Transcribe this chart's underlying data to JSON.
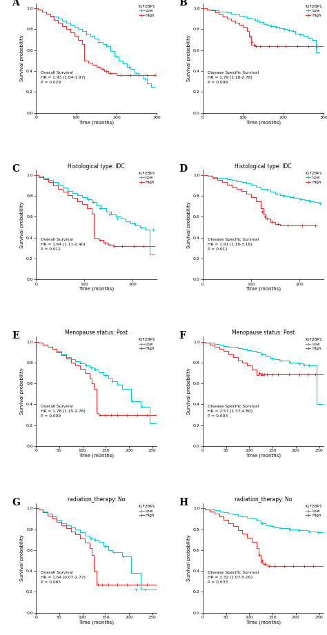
{
  "figure_size": [
    4.74,
    9.21
  ],
  "dpi": 100,
  "panels": [
    {
      "label": "A",
      "title": "",
      "annotation": "Overall Survival\nHR = 1.43 (1.04-1.97)\nP = 0.029",
      "xlim": [
        0,
        300
      ],
      "ylim": [
        0.0,
        1.05
      ],
      "xticks": [
        0,
        100,
        200,
        300
      ],
      "yticks": [
        0.0,
        0.2,
        0.4,
        0.6,
        0.8,
        1.0
      ],
      "low_x": [
        0,
        5,
        15,
        25,
        35,
        45,
        55,
        65,
        75,
        85,
        95,
        105,
        115,
        125,
        135,
        145,
        155,
        165,
        175,
        185,
        195,
        205,
        215,
        225,
        235,
        245,
        255,
        265,
        275,
        285,
        295
      ],
      "low_y": [
        1.0,
        0.99,
        0.97,
        0.95,
        0.93,
        0.92,
        0.9,
        0.88,
        0.86,
        0.84,
        0.82,
        0.8,
        0.78,
        0.76,
        0.74,
        0.71,
        0.68,
        0.66,
        0.64,
        0.59,
        0.54,
        0.5,
        0.47,
        0.44,
        0.42,
        0.38,
        0.36,
        0.33,
        0.28,
        0.25,
        0.25
      ],
      "high_x": [
        0,
        5,
        15,
        25,
        35,
        45,
        55,
        65,
        75,
        85,
        95,
        105,
        115,
        120,
        130,
        140,
        150,
        160,
        170,
        180,
        200,
        220,
        240,
        260,
        280,
        300
      ],
      "high_y": [
        1.0,
        0.99,
        0.97,
        0.95,
        0.92,
        0.89,
        0.86,
        0.83,
        0.8,
        0.77,
        0.74,
        0.7,
        0.66,
        0.5,
        0.48,
        0.46,
        0.44,
        0.42,
        0.4,
        0.38,
        0.36,
        0.36,
        0.36,
        0.36,
        0.36,
        0.36
      ],
      "low_censor_x": [
        125,
        155,
        178,
        200,
        230,
        250,
        270
      ],
      "low_censor_y": [
        0.76,
        0.68,
        0.64,
        0.54,
        0.44,
        0.38,
        0.33
      ],
      "high_censor_x": [
        155,
        165,
        175,
        185,
        210,
        235,
        255,
        275,
        295
      ],
      "high_censor_y": [
        0.44,
        0.42,
        0.4,
        0.38,
        0.36,
        0.36,
        0.36,
        0.36,
        0.36
      ]
    },
    {
      "label": "B",
      "title": "",
      "annotation": "Disease Specific Survival\nHR = 1.79 (1.18-2.78)\nP = 0.009",
      "xlim": [
        0,
        300
      ],
      "ylim": [
        0.0,
        1.05
      ],
      "xticks": [
        0,
        100,
        200,
        300
      ],
      "yticks": [
        0.0,
        0.2,
        0.4,
        0.6,
        0.8,
        1.0
      ],
      "low_x": [
        0,
        10,
        20,
        30,
        40,
        50,
        60,
        70,
        80,
        90,
        100,
        110,
        120,
        130,
        140,
        150,
        160,
        170,
        180,
        190,
        200,
        210,
        220,
        230,
        240,
        250,
        260,
        270,
        280,
        290
      ],
      "low_y": [
        1.0,
        0.99,
        0.99,
        0.98,
        0.97,
        0.97,
        0.96,
        0.95,
        0.94,
        0.93,
        0.92,
        0.91,
        0.9,
        0.88,
        0.87,
        0.85,
        0.84,
        0.83,
        0.82,
        0.81,
        0.8,
        0.79,
        0.78,
        0.76,
        0.75,
        0.74,
        0.72,
        0.7,
        0.58,
        0.58
      ],
      "high_x": [
        0,
        10,
        20,
        30,
        40,
        50,
        60,
        70,
        80,
        90,
        100,
        110,
        115,
        120,
        130,
        140,
        160,
        180,
        200,
        220,
        240,
        260,
        280,
        300
      ],
      "high_y": [
        1.0,
        0.99,
        0.98,
        0.96,
        0.94,
        0.92,
        0.9,
        0.88,
        0.86,
        0.84,
        0.82,
        0.78,
        0.73,
        0.65,
        0.64,
        0.64,
        0.64,
        0.64,
        0.64,
        0.64,
        0.64,
        0.64,
        0.64,
        0.64
      ],
      "low_censor_x": [
        135,
        155,
        170,
        182,
        202,
        214,
        225,
        242
      ],
      "low_censor_y": [
        0.88,
        0.85,
        0.83,
        0.82,
        0.8,
        0.79,
        0.78,
        0.75
      ],
      "high_censor_x": [
        118,
        122,
        127,
        132,
        142,
        165,
        185,
        205,
        235,
        262,
        282
      ],
      "high_censor_y": [
        0.73,
        0.68,
        0.65,
        0.64,
        0.64,
        0.64,
        0.64,
        0.64,
        0.64,
        0.64,
        0.64
      ]
    },
    {
      "label": "C",
      "title": "Histological type: IDC",
      "annotation": "Overall Survival\nHR = 1.64 (1.11-2.40)\nP = 0.012",
      "xlim": [
        0,
        250
      ],
      "ylim": [
        0.0,
        1.05
      ],
      "xticks": [
        0,
        100,
        200
      ],
      "yticks": [
        0.0,
        0.2,
        0.4,
        0.6,
        0.8,
        1.0
      ],
      "low_x": [
        0,
        5,
        15,
        25,
        35,
        45,
        55,
        65,
        75,
        85,
        95,
        105,
        115,
        125,
        135,
        145,
        155,
        165,
        175,
        185,
        195,
        205,
        215,
        225,
        235,
        245
      ],
      "low_y": [
        1.0,
        0.99,
        0.97,
        0.95,
        0.93,
        0.91,
        0.88,
        0.85,
        0.83,
        0.81,
        0.79,
        0.77,
        0.74,
        0.71,
        0.68,
        0.65,
        0.62,
        0.6,
        0.58,
        0.56,
        0.54,
        0.52,
        0.5,
        0.48,
        0.24,
        0.24
      ],
      "high_x": [
        0,
        5,
        15,
        25,
        35,
        45,
        55,
        65,
        75,
        85,
        95,
        105,
        115,
        120,
        130,
        140,
        150,
        160,
        175,
        195,
        215,
        235,
        245
      ],
      "high_y": [
        1.0,
        0.98,
        0.96,
        0.93,
        0.9,
        0.87,
        0.84,
        0.81,
        0.78,
        0.75,
        0.72,
        0.68,
        0.63,
        0.4,
        0.38,
        0.35,
        0.33,
        0.32,
        0.32,
        0.32,
        0.32,
        0.32,
        0.32
      ],
      "low_censor_x": [
        108,
        118,
        132,
        152,
        168,
        202,
        218,
        242
      ],
      "low_censor_y": [
        0.77,
        0.74,
        0.68,
        0.62,
        0.58,
        0.54,
        0.5,
        0.48
      ],
      "high_censor_x": [
        132,
        142,
        152,
        162,
        178,
        202,
        222
      ],
      "high_censor_y": [
        0.38,
        0.35,
        0.33,
        0.32,
        0.32,
        0.32,
        0.32
      ]
    },
    {
      "label": "D",
      "title": "Histological type: IDC",
      "annotation": "Disease Specific Survival\nHR = 1.91 (1.16-3.16)\nP = 0.011",
      "xlim": [
        0,
        250
      ],
      "ylim": [
        0.0,
        1.05
      ],
      "xticks": [
        0,
        100,
        200
      ],
      "yticks": [
        0.0,
        0.2,
        0.4,
        0.6,
        0.8,
        1.0
      ],
      "low_x": [
        0,
        10,
        20,
        30,
        40,
        50,
        60,
        70,
        80,
        90,
        100,
        110,
        120,
        130,
        140,
        150,
        160,
        170,
        180,
        190,
        200,
        210,
        220,
        230,
        240
      ],
      "low_y": [
        1.0,
        0.99,
        0.98,
        0.97,
        0.97,
        0.96,
        0.95,
        0.94,
        0.93,
        0.92,
        0.91,
        0.89,
        0.87,
        0.86,
        0.84,
        0.82,
        0.81,
        0.8,
        0.79,
        0.78,
        0.77,
        0.76,
        0.75,
        0.74,
        0.73
      ],
      "high_x": [
        0,
        10,
        20,
        30,
        40,
        50,
        60,
        70,
        80,
        90,
        100,
        110,
        120,
        125,
        130,
        140,
        150,
        160,
        175,
        195,
        215,
        235
      ],
      "high_y": [
        1.0,
        0.99,
        0.97,
        0.95,
        0.93,
        0.91,
        0.89,
        0.87,
        0.85,
        0.82,
        0.79,
        0.75,
        0.68,
        0.62,
        0.58,
        0.55,
        0.53,
        0.52,
        0.52,
        0.52,
        0.52,
        0.52
      ],
      "low_censor_x": [
        132,
        152,
        167,
        187,
        202,
        222,
        242
      ],
      "low_censor_y": [
        0.86,
        0.82,
        0.8,
        0.79,
        0.77,
        0.75,
        0.73
      ],
      "high_censor_x": [
        122,
        128,
        132,
        142,
        155,
        175,
        205,
        232
      ],
      "high_censor_y": [
        0.65,
        0.6,
        0.58,
        0.55,
        0.53,
        0.52,
        0.52,
        0.52
      ]
    },
    {
      "label": "E",
      "title": "Menopause status: Post",
      "annotation": "Overall Survival\nHR = 1.78 (1.15-2.76)\nP = 0.009",
      "xlim": [
        0,
        260
      ],
      "ylim": [
        0.0,
        1.05
      ],
      "xticks": [
        0,
        50,
        100,
        150,
        200,
        250
      ],
      "yticks": [
        0.0,
        0.2,
        0.4,
        0.6,
        0.8,
        1.0
      ],
      "low_x": [
        0,
        5,
        15,
        25,
        35,
        45,
        55,
        65,
        75,
        85,
        95,
        105,
        115,
        125,
        135,
        145,
        155,
        165,
        175,
        185,
        205,
        225,
        245,
        260
      ],
      "low_y": [
        1.0,
        0.99,
        0.97,
        0.95,
        0.93,
        0.91,
        0.88,
        0.85,
        0.83,
        0.81,
        0.79,
        0.77,
        0.75,
        0.73,
        0.71,
        0.68,
        0.65,
        0.62,
        0.59,
        0.55,
        0.43,
        0.38,
        0.22,
        0.22
      ],
      "high_x": [
        0,
        5,
        15,
        25,
        35,
        45,
        55,
        65,
        75,
        85,
        95,
        105,
        115,
        120,
        125,
        130,
        135,
        145,
        155,
        165,
        185,
        205,
        225,
        245,
        260
      ],
      "high_y": [
        1.0,
        0.99,
        0.97,
        0.95,
        0.93,
        0.9,
        0.87,
        0.84,
        0.8,
        0.77,
        0.74,
        0.7,
        0.65,
        0.6,
        0.55,
        0.32,
        0.3,
        0.3,
        0.3,
        0.3,
        0.3,
        0.3,
        0.3,
        0.3,
        0.3
      ],
      "low_censor_x": [
        108,
        118,
        128,
        148,
        165,
        208,
        228
      ],
      "low_censor_y": [
        0.77,
        0.75,
        0.73,
        0.68,
        0.62,
        0.43,
        0.38
      ],
      "high_censor_x": [
        138,
        148,
        162,
        175,
        195,
        218,
        238
      ],
      "high_censor_y": [
        0.3,
        0.3,
        0.3,
        0.3,
        0.3,
        0.3,
        0.3
      ]
    },
    {
      "label": "F",
      "title": "Menopause status: Post",
      "annotation": "Disease Specific Survival\nHR = 2.57 (1.37-4.80)\nP = 0.003",
      "xlim": [
        0,
        260
      ],
      "ylim": [
        0.0,
        1.05
      ],
      "xticks": [
        0,
        50,
        100,
        150,
        200,
        250
      ],
      "yticks": [
        0.0,
        0.2,
        0.4,
        0.6,
        0.8,
        1.0
      ],
      "low_x": [
        0,
        5,
        15,
        25,
        35,
        45,
        55,
        65,
        75,
        85,
        95,
        105,
        115,
        125,
        135,
        145,
        155,
        165,
        185,
        205,
        215,
        225,
        245,
        260
      ],
      "low_y": [
        1.0,
        0.99,
        0.99,
        0.98,
        0.97,
        0.96,
        0.95,
        0.95,
        0.94,
        0.93,
        0.92,
        0.91,
        0.9,
        0.88,
        0.86,
        0.84,
        0.83,
        0.82,
        0.8,
        0.79,
        0.78,
        0.77,
        0.4,
        0.4
      ],
      "high_x": [
        0,
        5,
        15,
        25,
        35,
        45,
        55,
        65,
        75,
        85,
        95,
        105,
        115,
        120,
        125,
        130,
        135,
        145,
        155,
        165,
        185,
        205,
        220,
        240,
        260
      ],
      "high_y": [
        1.0,
        0.99,
        0.97,
        0.95,
        0.93,
        0.91,
        0.88,
        0.85,
        0.82,
        0.8,
        0.77,
        0.73,
        0.68,
        0.7,
        0.68,
        0.69,
        0.69,
        0.69,
        0.69,
        0.69,
        0.69,
        0.69,
        0.69,
        0.69,
        0.69
      ],
      "low_censor_x": [
        128,
        148,
        168,
        188,
        208,
        218,
        228
      ],
      "low_censor_y": [
        0.88,
        0.84,
        0.82,
        0.8,
        0.79,
        0.78,
        0.77
      ],
      "high_censor_x": [
        122,
        128,
        132,
        138,
        148,
        162,
        185,
        208,
        225,
        242
      ],
      "high_censor_y": [
        0.7,
        0.69,
        0.69,
        0.69,
        0.69,
        0.69,
        0.69,
        0.69,
        0.69,
        0.69
      ]
    },
    {
      "label": "G",
      "title": "radiation_therapy: No",
      "annotation": "Overall Survival\nHR = 1.64 (0.07-2.77)\nP = 0.065",
      "xlim": [
        0,
        260
      ],
      "ylim": [
        0.0,
        1.05
      ],
      "xticks": [
        0,
        50,
        100,
        150,
        200,
        250
      ],
      "yticks": [
        0.0,
        0.2,
        0.4,
        0.6,
        0.8,
        1.0
      ],
      "low_x": [
        0,
        5,
        15,
        25,
        35,
        45,
        55,
        65,
        75,
        85,
        95,
        105,
        115,
        125,
        135,
        145,
        155,
        165,
        185,
        205,
        225,
        245,
        260
      ],
      "low_y": [
        1.0,
        0.99,
        0.97,
        0.95,
        0.92,
        0.89,
        0.86,
        0.84,
        0.82,
        0.8,
        0.77,
        0.74,
        0.71,
        0.7,
        0.68,
        0.64,
        0.6,
        0.58,
        0.54,
        0.38,
        0.22,
        0.22,
        0.22
      ],
      "high_x": [
        0,
        5,
        15,
        25,
        35,
        45,
        55,
        65,
        75,
        85,
        95,
        105,
        115,
        120,
        125,
        130,
        140,
        155,
        175,
        195,
        215,
        235,
        255,
        260
      ],
      "high_y": [
        1.0,
        0.99,
        0.96,
        0.93,
        0.9,
        0.87,
        0.84,
        0.81,
        0.78,
        0.75,
        0.71,
        0.67,
        0.62,
        0.55,
        0.4,
        0.27,
        0.27,
        0.27,
        0.27,
        0.27,
        0.27,
        0.27,
        0.27,
        0.27
      ],
      "low_censor_x": [
        118,
        128,
        148,
        168,
        188,
        215,
        235
      ],
      "low_censor_y": [
        0.71,
        0.7,
        0.64,
        0.58,
        0.54,
        0.22,
        0.22
      ],
      "high_censor_x": [
        133,
        142,
        155,
        175,
        195,
        218,
        238
      ],
      "high_censor_y": [
        0.27,
        0.27,
        0.27,
        0.27,
        0.27,
        0.27,
        0.27
      ]
    },
    {
      "label": "H",
      "title": "radiation_therapy: No",
      "annotation": "Disease Specific Survival\nHR = 2.32 (1.07-5.00)\nP = 0.033",
      "xlim": [
        0,
        260
      ],
      "ylim": [
        0.0,
        1.05
      ],
      "xticks": [
        0,
        50,
        100,
        150,
        200,
        250
      ],
      "yticks": [
        0.0,
        0.2,
        0.4,
        0.6,
        0.8,
        1.0
      ],
      "low_x": [
        0,
        5,
        15,
        25,
        35,
        45,
        55,
        65,
        75,
        85,
        95,
        105,
        115,
        125,
        135,
        145,
        155,
        165,
        185,
        205,
        225,
        245,
        260
      ],
      "low_y": [
        1.0,
        0.99,
        0.99,
        0.98,
        0.97,
        0.96,
        0.95,
        0.94,
        0.93,
        0.92,
        0.91,
        0.9,
        0.88,
        0.86,
        0.84,
        0.83,
        0.82,
        0.81,
        0.8,
        0.79,
        0.78,
        0.77,
        0.77
      ],
      "high_x": [
        0,
        5,
        15,
        25,
        35,
        45,
        55,
        65,
        75,
        85,
        95,
        105,
        115,
        120,
        125,
        130,
        140,
        155,
        175,
        195,
        215,
        235,
        255,
        260
      ],
      "high_y": [
        1.0,
        0.99,
        0.97,
        0.95,
        0.92,
        0.89,
        0.86,
        0.83,
        0.79,
        0.76,
        0.72,
        0.68,
        0.62,
        0.55,
        0.48,
        0.46,
        0.45,
        0.45,
        0.45,
        0.45,
        0.45,
        0.45,
        0.45,
        0.45
      ],
      "low_censor_x": [
        128,
        148,
        168,
        188,
        208,
        228,
        248
      ],
      "low_censor_y": [
        0.86,
        0.83,
        0.81,
        0.8,
        0.79,
        0.78,
        0.77
      ],
      "high_censor_x": [
        122,
        128,
        133,
        142,
        155,
        175,
        195,
        218,
        238
      ],
      "high_censor_y": [
        0.55,
        0.5,
        0.47,
        0.45,
        0.45,
        0.45,
        0.45,
        0.45,
        0.45
      ]
    }
  ],
  "low_color": "#00CED1",
  "high_color": "#EE3333",
  "legend_title": "IGF2BP1",
  "xlabel": "Time (months)",
  "ylabel": "Survival probability"
}
